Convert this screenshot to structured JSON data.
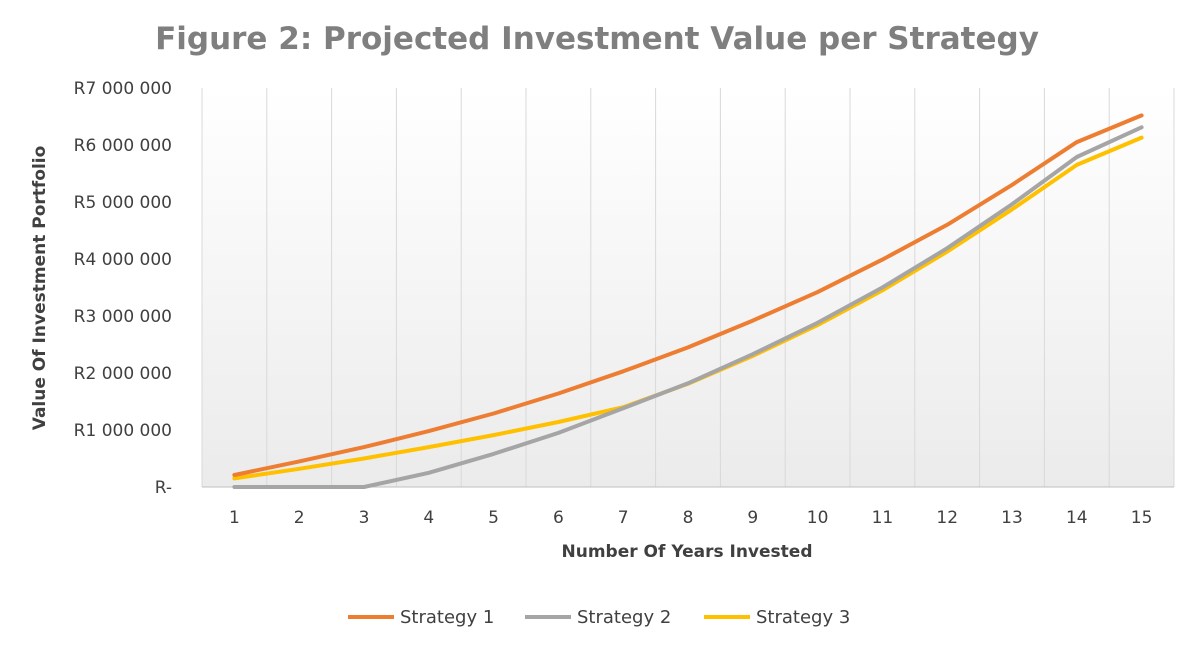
{
  "chart_data": {
    "type": "line",
    "title": "Figure 2: Projected Investment Value per Strategy",
    "xlabel": "Number Of Years Invested",
    "ylabel": "Value Of Investment Portfolio",
    "x": [
      1,
      2,
      3,
      4,
      5,
      6,
      7,
      8,
      9,
      10,
      11,
      12,
      13,
      14,
      15
    ],
    "ylim": [
      0,
      7000000
    ],
    "yticks": [
      {
        "value": 0,
        "label": "R-"
      },
      {
        "value": 1000000,
        "label": "R1 000 000"
      },
      {
        "value": 2000000,
        "label": "R2 000 000"
      },
      {
        "value": 3000000,
        "label": "R3 000 000"
      },
      {
        "value": 4000000,
        "label": "R4 000 000"
      },
      {
        "value": 5000000,
        "label": "R5 000 000"
      },
      {
        "value": 6000000,
        "label": "R6 000 000"
      },
      {
        "value": 7000000,
        "label": "R7 000 000"
      }
    ],
    "grid": "vertical",
    "legend": "bottom",
    "series": [
      {
        "name": "Strategy 1",
        "color": "#ed7d31",
        "values": [
          210000,
          450000,
          700000,
          980000,
          1290000,
          1640000,
          2030000,
          2450000,
          2920000,
          3420000,
          3990000,
          4600000,
          5300000,
          6050000,
          6520000
        ]
      },
      {
        "name": "Strategy 2",
        "color": "#a5a5a5",
        "values": [
          0,
          0,
          0,
          250000,
          580000,
          950000,
          1380000,
          1820000,
          2330000,
          2880000,
          3500000,
          4190000,
          4960000,
          5790000,
          6310000
        ]
      },
      {
        "name": "Strategy 3",
        "color": "#ffc000",
        "values": [
          150000,
          320000,
          500000,
          700000,
          910000,
          1140000,
          1400000,
          1810000,
          2300000,
          2840000,
          3450000,
          4130000,
          4870000,
          5650000,
          6130000
        ]
      }
    ]
  }
}
